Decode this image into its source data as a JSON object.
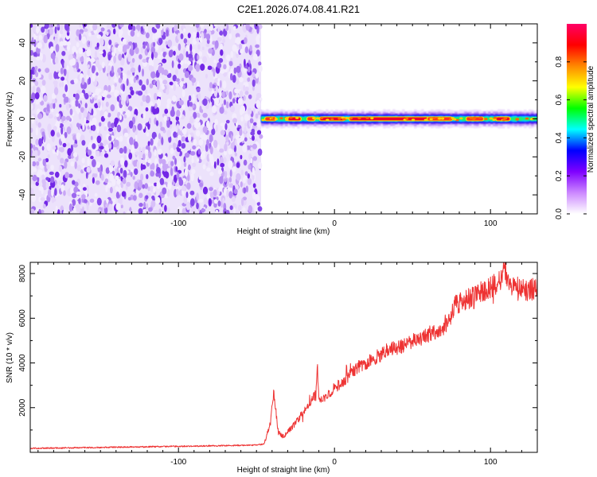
{
  "chart_data": [
    {
      "type": "heatmap",
      "title": "C2E1.2026.074.08.41.R21",
      "xlabel": "Height of straight line (km)",
      "ylabel": "Frequency (Hz)",
      "xlim": [
        -195,
        130
      ],
      "ylim": [
        -50,
        50
      ],
      "xticks": [
        -100,
        0,
        100
      ],
      "xtick_labels": [
        "-100",
        "0",
        "100"
      ],
      "yticks": [
        -40,
        -20,
        0,
        20,
        40
      ],
      "ytick_labels": [
        "-40",
        "-20",
        "0",
        "20",
        "40"
      ],
      "noise_region_x": [
        -195,
        -47
      ],
      "signal_band": {
        "x": [
          -47,
          130
        ],
        "center_freq_hz": 0,
        "segments": [
          {
            "x": [
              -44,
              -38
            ],
            "amp": 0.9
          },
          {
            "x": [
              -30,
              -22
            ],
            "amp": 1.0
          },
          {
            "x": [
              -17,
              -13
            ],
            "amp": 0.9
          },
          {
            "x": [
              -9,
              6
            ],
            "amp": 1.0
          },
          {
            "x": [
              10,
              60
            ],
            "amp": 0.95
          },
          {
            "x": [
              60,
              75
            ],
            "amp": 0.85
          },
          {
            "x": [
              85,
              95
            ],
            "amp": 0.85
          },
          {
            "x": [
              104,
              112
            ],
            "amp": 1.0
          }
        ]
      },
      "colorbar": {
        "label": "Normalized spectral amplitude",
        "range": [
          0,
          1
        ],
        "ticks": [
          0.0,
          0.2,
          0.4,
          0.6,
          0.8
        ],
        "tick_labels": [
          "0.0",
          "0.2",
          "0.4",
          "0.6",
          "0.8"
        ],
        "colors": [
          "#ffffff",
          "#cc88ff",
          "#7f00ff",
          "#0000ff",
          "#00ffff",
          "#00ff00",
          "#ffff00",
          "#ff8800",
          "#ff0000",
          "#ff0066"
        ]
      }
    },
    {
      "type": "line",
      "xlabel": "Height of straight line (km)",
      "ylabel": "SNR (10 * v/v)",
      "xlim": [
        -195,
        130
      ],
      "ylim": [
        0,
        8500
      ],
      "xticks": [
        -100,
        0,
        100
      ],
      "xtick_labels": [
        "-100",
        "0",
        "100"
      ],
      "yticks": [
        2000,
        4000,
        6000,
        8000
      ],
      "ytick_labels": [
        "2000",
        "4000",
        "6000",
        "8000"
      ],
      "grid": false,
      "series": [
        {
          "name": "SNR",
          "color": "#ee3333",
          "x": [
            -195,
            -170,
            -150,
            -130,
            -110,
            -90,
            -70,
            -50,
            -45,
            -41,
            -39,
            -36,
            -33,
            -30,
            -25,
            -20,
            -15,
            -12,
            -11,
            -10,
            -5,
            0,
            5,
            10,
            15,
            20,
            25,
            30,
            35,
            40,
            45,
            50,
            55,
            60,
            65,
            70,
            74,
            77,
            80,
            85,
            90,
            95,
            100,
            105,
            108,
            109,
            110,
            112,
            115,
            120,
            125,
            130
          ],
          "y": [
            180,
            200,
            220,
            240,
            260,
            280,
            300,
            330,
            380,
            1300,
            2700,
            900,
            700,
            900,
            1300,
            1800,
            2300,
            2600,
            3900,
            2300,
            2500,
            2900,
            3100,
            3500,
            3800,
            4000,
            4200,
            4400,
            4600,
            4700,
            4800,
            4950,
            5050,
            5250,
            5450,
            5650,
            5950,
            6600,
            6700,
            6850,
            7000,
            7200,
            7400,
            7550,
            7900,
            8600,
            7600,
            7400,
            7450,
            7300,
            7250,
            7350
          ]
        }
      ]
    }
  ]
}
